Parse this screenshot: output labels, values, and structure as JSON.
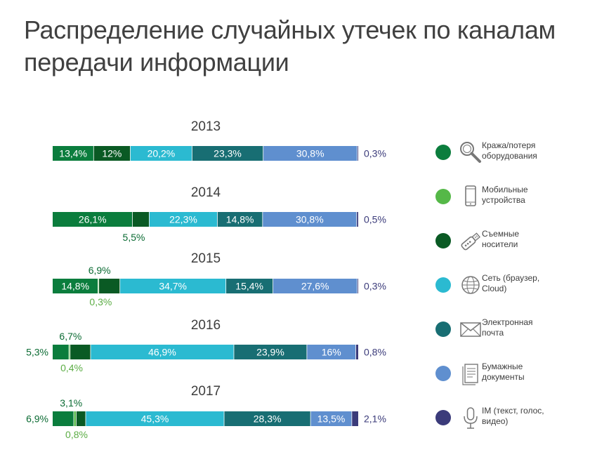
{
  "title": {
    "line1": "Распределение случайных утечек по каналам",
    "line2": "передачи информации"
  },
  "colors": {
    "theft": "#0b7d3d",
    "mobile": "#55b848",
    "removable": "#0a5a24",
    "network": "#2bbad1",
    "email": "#186e73",
    "paper": "#5f8fcf",
    "im": "#3b3b7a",
    "label_dark": "#0b6b33",
    "label_light": "#5cad45",
    "label_im": "#3b3b7a"
  },
  "legend": [
    {
      "key": "theft",
      "icon": "magnifier-icon",
      "lines": [
        "Кража/потеря",
        "оборудования"
      ]
    },
    {
      "key": "mobile",
      "icon": "smartphone-icon",
      "lines": [
        "Мобильные",
        "устройства"
      ]
    },
    {
      "key": "removable",
      "icon": "usb-icon",
      "lines": [
        "Съемные",
        "носители"
      ]
    },
    {
      "key": "network",
      "icon": "globe-icon",
      "lines": [
        "Сеть (браузер,",
        "Cloud)"
      ]
    },
    {
      "key": "email",
      "icon": "envelope-icon",
      "lines": [
        "Электронная",
        "почта"
      ]
    },
    {
      "key": "paper",
      "icon": "document-icon",
      "lines": [
        "Бумажные",
        "документы"
      ]
    },
    {
      "key": "im",
      "icon": "microphone-icon",
      "lines": [
        "IM (текст, голос,",
        "видео)"
      ]
    }
  ],
  "chart_data": {
    "type": "bar",
    "orientation": "horizontal",
    "stacked": true,
    "normalized_to": 100,
    "categories": [
      "2013",
      "2014",
      "2015",
      "2016",
      "2017"
    ],
    "series": [
      {
        "name": "Кража/потеря оборудования",
        "key": "theft",
        "values": [
          13.4,
          26.1,
          14.8,
          5.3,
          6.9
        ],
        "labels": [
          "13,4%",
          "26,1%",
          "14,8%",
          "5,3%",
          "6,9%"
        ]
      },
      {
        "name": "Мобильные устройства",
        "key": "mobile",
        "values": [
          0,
          0,
          0.3,
          0.4,
          0.8
        ],
        "labels": [
          "",
          "",
          "0,3%",
          "0,4%",
          "0,8%"
        ]
      },
      {
        "name": "Съемные носители",
        "key": "removable",
        "values": [
          12,
          5.5,
          6.9,
          6.7,
          3.1
        ],
        "labels": [
          "12%",
          "5,5%",
          "6,9%",
          "6,7%",
          "3,1%"
        ]
      },
      {
        "name": "Сеть (браузер, Cloud)",
        "key": "network",
        "values": [
          20.2,
          22.3,
          34.7,
          46.9,
          45.3
        ],
        "labels": [
          "20,2%",
          "22,3%",
          "34,7%",
          "46,9%",
          "45,3%"
        ]
      },
      {
        "name": "Электронная почта",
        "key": "email",
        "values": [
          23.3,
          14.8,
          15.4,
          23.9,
          28.3
        ],
        "labels": [
          "23,3%",
          "14,8%",
          "15,4%",
          "23,9%",
          "28,3%"
        ]
      },
      {
        "name": "Бумажные документы",
        "key": "paper",
        "values": [
          30.8,
          30.8,
          27.6,
          16,
          13.5
        ],
        "labels": [
          "30,8%",
          "30,8%",
          "27,6%",
          "16%",
          "13,5%"
        ]
      },
      {
        "name": "IM (текст, голос, видео)",
        "key": "im",
        "values": [
          0.3,
          0.5,
          0.3,
          0.8,
          2.1
        ],
        "labels": [
          "0,3%",
          "0,5%",
          "0,3%",
          "0,8%",
          "2,1%"
        ]
      }
    ]
  }
}
